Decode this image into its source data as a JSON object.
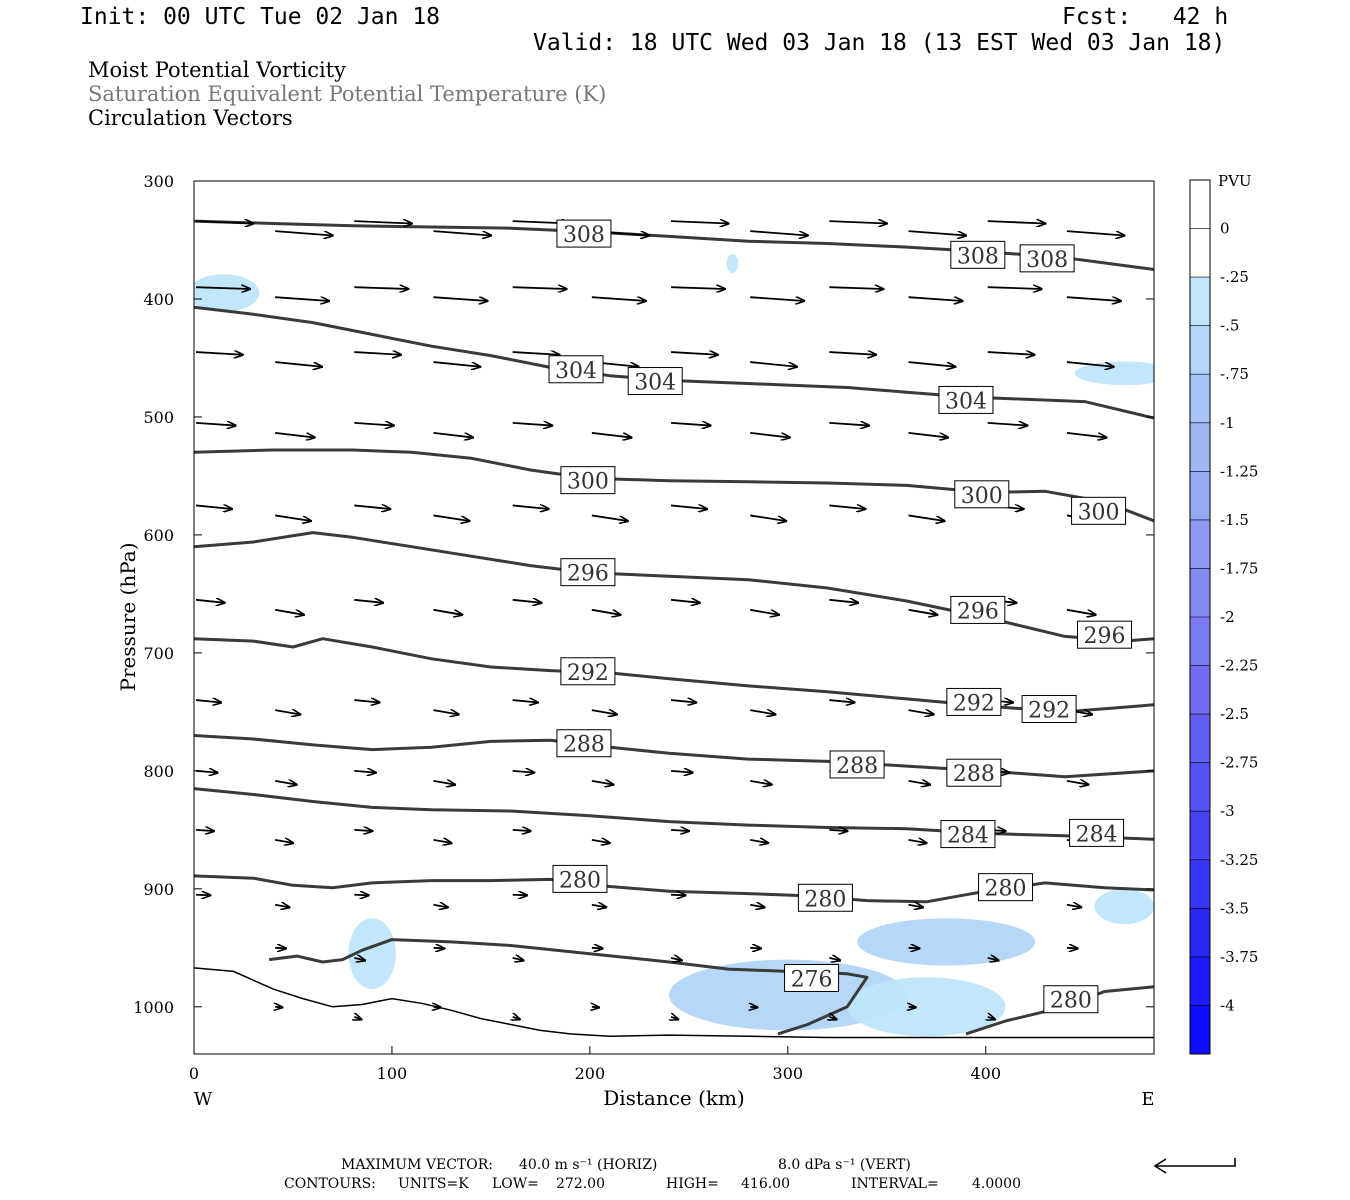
{
  "header": {
    "init": "Init: 00 UTC Tue 02 Jan 18",
    "fcst": "Fcst:   42 h",
    "valid": "Valid: 18 UTC Wed 03 Jan 18 (13 EST Wed 03 Jan 18)"
  },
  "titles": {
    "line1": "Moist Potential Vorticity",
    "line2": "Saturation Equivalent Potential Temperature (K)",
    "line3": "Circulation Vectors"
  },
  "footer": {
    "max_vector_label": "MAXIMUM VECTOR:",
    "max_horiz": "40.0 m s⁻¹ (HORIZ)",
    "max_vert": "8.0 dPa s⁻¹ (VERT)",
    "contours_label": "CONTOURS:",
    "units": "UNITS=K",
    "low": "LOW=",
    "low_val": "272.00",
    "high": "HIGH=",
    "high_val": "416.00",
    "interval": "INTERVAL=",
    "interval_val": "4.0000"
  },
  "chart_data": {
    "type": "cross-section",
    "xlabel": "Distance (km)",
    "ylabel": "Pressure (hPa)",
    "xlim": [
      0,
      485
    ],
    "ylim": [
      300,
      1040
    ],
    "x_ticks": [
      0,
      100,
      200,
      300,
      400
    ],
    "y_ticks": [
      300,
      400,
      500,
      600,
      700,
      800,
      900,
      1000
    ],
    "x_end_labels": {
      "left": "W",
      "right": "E"
    },
    "colorbar": {
      "unit": "PVU",
      "labels": [
        "0",
        "-.25",
        "-.5",
        "-.75",
        "-1",
        "-1.25",
        "-1.5",
        "-1.75",
        "-2",
        "-2.25",
        "-2.5",
        "-2.75",
        "-3",
        "-3.25",
        "-3.5",
        "-3.75",
        "-4"
      ],
      "colors": [
        "#ffffff",
        "#ffffff",
        "#bfe6fa",
        "#b3d5f8",
        "#a8c6f5",
        "#9fb6f5",
        "#96a7f3",
        "#8d98f2",
        "#8489f1",
        "#7a7af0",
        "#6f6cf0",
        "#625ef1",
        "#5550f2",
        "#4743f3",
        "#3935f5",
        "#2a27f7",
        "#1c1afa",
        "#0d0dfd"
      ]
    },
    "theta_es_contours": [
      {
        "value": 308,
        "points": [
          [
            0,
            334
          ],
          [
            40,
            336
          ],
          [
            80,
            338
          ],
          [
            120,
            339
          ],
          [
            160,
            340
          ],
          [
            200,
            343
          ],
          [
            240,
            347
          ],
          [
            280,
            351
          ],
          [
            320,
            353
          ],
          [
            360,
            356
          ],
          [
            400,
            360
          ],
          [
            440,
            365
          ],
          [
            485,
            375
          ]
        ],
        "labels": [
          [
            197,
            345
          ],
          [
            396,
            363
          ],
          [
            431,
            366
          ]
        ]
      },
      {
        "value": 304,
        "points": [
          [
            0,
            407
          ],
          [
            30,
            413
          ],
          [
            60,
            420
          ],
          [
            90,
            430
          ],
          [
            120,
            440
          ],
          [
            150,
            448
          ],
          [
            180,
            458
          ],
          [
            210,
            465
          ],
          [
            240,
            469
          ],
          [
            270,
            471
          ],
          [
            300,
            473
          ],
          [
            330,
            475
          ],
          [
            360,
            479
          ],
          [
            390,
            483
          ],
          [
            420,
            485
          ],
          [
            450,
            487
          ],
          [
            485,
            501
          ]
        ],
        "labels": [
          [
            193,
            460
          ],
          [
            233,
            470
          ],
          [
            390,
            486
          ]
        ]
      },
      {
        "value": 300,
        "points": [
          [
            0,
            530
          ],
          [
            40,
            528
          ],
          [
            80,
            528
          ],
          [
            110,
            530
          ],
          [
            140,
            535
          ],
          [
            170,
            545
          ],
          [
            200,
            552
          ],
          [
            240,
            554
          ],
          [
            280,
            555
          ],
          [
            320,
            556
          ],
          [
            360,
            558
          ],
          [
            400,
            564
          ],
          [
            430,
            563
          ],
          [
            460,
            572
          ],
          [
            485,
            588
          ]
        ],
        "labels": [
          [
            199,
            554
          ],
          [
            398,
            566
          ],
          [
            457,
            580
          ]
        ]
      },
      {
        "value": 296,
        "points": [
          [
            0,
            610
          ],
          [
            30,
            606
          ],
          [
            60,
            598
          ],
          [
            80,
            602
          ],
          [
            110,
            610
          ],
          [
            140,
            618
          ],
          [
            170,
            626
          ],
          [
            200,
            632
          ],
          [
            240,
            635
          ],
          [
            280,
            638
          ],
          [
            320,
            645
          ],
          [
            360,
            656
          ],
          [
            400,
            670
          ],
          [
            440,
            686
          ],
          [
            470,
            690
          ],
          [
            485,
            688
          ]
        ],
        "labels": [
          [
            199,
            632
          ],
          [
            396,
            664
          ],
          [
            460,
            685
          ]
        ]
      },
      {
        "value": 292,
        "points": [
          [
            0,
            688
          ],
          [
            30,
            690
          ],
          [
            50,
            695
          ],
          [
            65,
            688
          ],
          [
            90,
            695
          ],
          [
            120,
            705
          ],
          [
            150,
            712
          ],
          [
            180,
            715
          ],
          [
            210,
            717
          ],
          [
            240,
            722
          ],
          [
            280,
            728
          ],
          [
            320,
            733
          ],
          [
            360,
            739
          ],
          [
            400,
            745
          ],
          [
            440,
            750
          ],
          [
            485,
            744
          ]
        ],
        "labels": [
          [
            199,
            716
          ],
          [
            394,
            742
          ],
          [
            432,
            748
          ]
        ]
      },
      {
        "value": 288,
        "points": [
          [
            0,
            770
          ],
          [
            30,
            773
          ],
          [
            60,
            778
          ],
          [
            90,
            782
          ],
          [
            120,
            780
          ],
          [
            150,
            775
          ],
          [
            180,
            774
          ],
          [
            210,
            780
          ],
          [
            240,
            785
          ],
          [
            280,
            790
          ],
          [
            320,
            792
          ],
          [
            360,
            796
          ],
          [
            400,
            800
          ],
          [
            440,
            805
          ],
          [
            485,
            800
          ]
        ],
        "labels": [
          [
            197,
            777
          ],
          [
            335,
            795
          ],
          [
            394,
            802
          ]
        ]
      },
      {
        "value": 284,
        "points": [
          [
            0,
            815
          ],
          [
            30,
            820
          ],
          [
            60,
            826
          ],
          [
            90,
            831
          ],
          [
            120,
            833
          ],
          [
            160,
            834
          ],
          [
            200,
            838
          ],
          [
            240,
            843
          ],
          [
            280,
            846
          ],
          [
            320,
            848
          ],
          [
            360,
            849
          ],
          [
            400,
            853
          ],
          [
            440,
            855
          ],
          [
            485,
            858
          ]
        ],
        "labels": [
          [
            391,
            854
          ],
          [
            456,
            853
          ]
        ]
      },
      {
        "value": 280,
        "points": [
          [
            0,
            889
          ],
          [
            30,
            891
          ],
          [
            50,
            897
          ],
          [
            70,
            899
          ],
          [
            90,
            895
          ],
          [
            120,
            893
          ],
          [
            150,
            893
          ],
          [
            180,
            892
          ],
          [
            210,
            898
          ],
          [
            240,
            902
          ],
          [
            280,
            904
          ],
          [
            310,
            906
          ],
          [
            340,
            910
          ],
          [
            370,
            911
          ],
          [
            400,
            902
          ],
          [
            430,
            895
          ],
          [
            460,
            899
          ],
          [
            485,
            901
          ]
        ],
        "labels": [
          [
            195,
            892
          ],
          [
            319,
            908
          ],
          [
            410,
            899
          ]
        ]
      },
      {
        "value": 276,
        "points": [
          [
            38,
            960
          ],
          [
            52,
            957
          ],
          [
            65,
            962
          ],
          [
            75,
            960
          ],
          [
            85,
            952
          ],
          [
            100,
            943
          ],
          [
            130,
            945
          ],
          [
            160,
            948
          ],
          [
            200,
            955
          ],
          [
            240,
            962
          ],
          [
            270,
            968
          ],
          [
            300,
            970
          ],
          [
            330,
            972
          ],
          [
            340,
            975
          ],
          [
            330,
            1000
          ],
          [
            310,
            1015
          ],
          [
            295,
            1023
          ]
        ],
        "labels": [
          [
            312,
            976
          ]
        ]
      },
      {
        "value": 280,
        "points": [
          [
            390,
            1023
          ],
          [
            410,
            1012
          ],
          [
            440,
            1000
          ],
          [
            460,
            987
          ],
          [
            485,
            983
          ]
        ],
        "labels": [
          [
            443,
            994
          ]
        ]
      }
    ],
    "mpv_shading": [
      {
        "level": -0.25,
        "center": [
          90,
          955
        ],
        "rx": 12,
        "ry": 30
      },
      {
        "level": -0.5,
        "center": [
          300,
          990
        ],
        "rx": 60,
        "ry": 30
      },
      {
        "level": -0.5,
        "center": [
          380,
          945
        ],
        "rx": 45,
        "ry": 20
      },
      {
        "level": -0.25,
        "center": [
          370,
          1000
        ],
        "rx": 40,
        "ry": 25
      },
      {
        "level": -0.25,
        "center": [
          470,
          915
        ],
        "rx": 15,
        "ry": 15
      },
      {
        "level": -0.25,
        "center": [
          15,
          395
        ],
        "rx": 18,
        "ry": 16
      },
      {
        "level": -0.25,
        "center": [
          470,
          463
        ],
        "rx": 25,
        "ry": 10
      },
      {
        "level": -0.25,
        "center": [
          272,
          370
        ],
        "rx": 3,
        "ry": 8
      }
    ],
    "vectors": [
      {
        "rows": [
          334,
          340,
          343,
          345,
          347,
          347
        ],
        "x": [
          0,
          40,
          80,
          120,
          160,
          200,
          240,
          280,
          320,
          360,
          400,
          440
        ],
        "u": 16,
        "w": 0.8
      },
      {
        "rows": [
          390
        ],
        "x": [
          0,
          40,
          80,
          120,
          160,
          200,
          240,
          280,
          320,
          360,
          400,
          440
        ],
        "u": 15,
        "w": 0.6
      },
      {
        "rows": [
          445
        ],
        "x": [
          0,
          40,
          80,
          120,
          160,
          200,
          240,
          280,
          320,
          360,
          400,
          440
        ],
        "u": 13,
        "w": 0.9
      },
      {
        "rows": [
          505
        ],
        "x": [
          0,
          40,
          80,
          120,
          160,
          200,
          240,
          280,
          320,
          360,
          400,
          440
        ],
        "u": 11,
        "w": 0.9
      },
      {
        "rows": [
          575
        ],
        "x": [
          0,
          40,
          80,
          120,
          160,
          200,
          240,
          280,
          320,
          360,
          400,
          440
        ],
        "u": 10,
        "w": 1.2
      },
      {
        "rows": [
          655
        ],
        "x": [
          0,
          40,
          80,
          120,
          160,
          200,
          240,
          280,
          320,
          360,
          400,
          440
        ],
        "u": 8,
        "w": 1.0
      },
      {
        "rows": [
          740
        ],
        "x": [
          0,
          40,
          80,
          120,
          160,
          200,
          240,
          280,
          320,
          360,
          400,
          440
        ],
        "u": 7,
        "w": 0.8
      },
      {
        "rows": [
          800
        ],
        "x": [
          0,
          40,
          80,
          120,
          160,
          200,
          240,
          280,
          320,
          360,
          400,
          440
        ],
        "u": 6,
        "w": 0.6
      },
      {
        "rows": [
          850
        ],
        "x": [
          0,
          40,
          80,
          120,
          160,
          200,
          240,
          280,
          320,
          360,
          400,
          440
        ],
        "u": 5,
        "w": 0.4
      },
      {
        "rows": [
          905
        ],
        "x": [
          0,
          40,
          80,
          120,
          160,
          200,
          240,
          280,
          320,
          360,
          400,
          440
        ],
        "u": 4,
        "w": 0.2
      },
      {
        "rows": [
          950
        ],
        "x": [
          40,
          80,
          120,
          160,
          200,
          240,
          280,
          320,
          360,
          400,
          440
        ],
        "u": 3,
        "w": 0.2
      },
      {
        "rows": [
          1000
        ],
        "x": [
          40,
          80,
          120,
          160,
          200,
          240,
          280,
          320,
          360,
          400,
          440
        ],
        "u": 2,
        "w": 0.2
      }
    ],
    "terrain": [
      [
        0,
        967
      ],
      [
        20,
        970
      ],
      [
        40,
        985
      ],
      [
        55,
        993
      ],
      [
        70,
        1000
      ],
      [
        85,
        998
      ],
      [
        100,
        993
      ],
      [
        115,
        997
      ],
      [
        130,
        1003
      ],
      [
        145,
        1010
      ],
      [
        160,
        1015
      ],
      [
        175,
        1020
      ],
      [
        190,
        1023
      ],
      [
        210,
        1025
      ],
      [
        240,
        1024
      ],
      [
        280,
        1025
      ],
      [
        320,
        1026
      ],
      [
        360,
        1026
      ],
      [
        400,
        1026
      ],
      [
        440,
        1026
      ],
      [
        485,
        1026
      ]
    ]
  }
}
